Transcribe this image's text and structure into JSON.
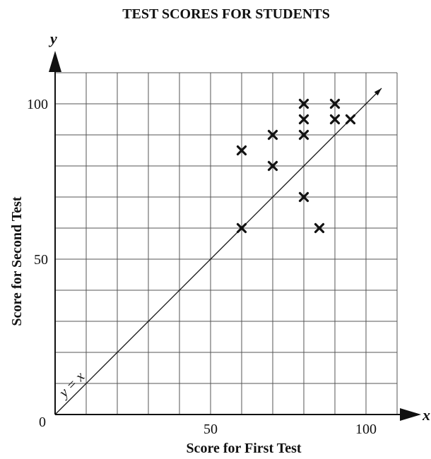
{
  "chart_data": {
    "type": "scatter",
    "title": "TEST SCORES FOR STUDENTS",
    "xlabel": "Score for First Test",
    "ylabel": "Score for Second Test",
    "x_axis_symbol": "x",
    "y_axis_symbol": "y",
    "xlim": [
      0,
      110
    ],
    "ylim": [
      0,
      110
    ],
    "grid": true,
    "grid_step": 10,
    "origin_label": "0",
    "x_ticks": [
      {
        "value": 50,
        "label": "50"
      },
      {
        "value": 100,
        "label": "100"
      }
    ],
    "y_ticks": [
      {
        "value": 50,
        "label": "50"
      },
      {
        "value": 100,
        "label": "100"
      }
    ],
    "marker": "x",
    "reference_line": {
      "label": "y = x",
      "equation": "y = x",
      "from": [
        0,
        0
      ],
      "to": [
        105,
        105
      ]
    },
    "points": [
      {
        "x": 60,
        "y": 85
      },
      {
        "x": 60,
        "y": 60
      },
      {
        "x": 70,
        "y": 90
      },
      {
        "x": 70,
        "y": 80
      },
      {
        "x": 80,
        "y": 100
      },
      {
        "x": 80,
        "y": 95
      },
      {
        "x": 80,
        "y": 90
      },
      {
        "x": 80,
        "y": 70
      },
      {
        "x": 85,
        "y": 60
      },
      {
        "x": 90,
        "y": 100
      },
      {
        "x": 90,
        "y": 95
      },
      {
        "x": 95,
        "y": 95
      }
    ]
  }
}
